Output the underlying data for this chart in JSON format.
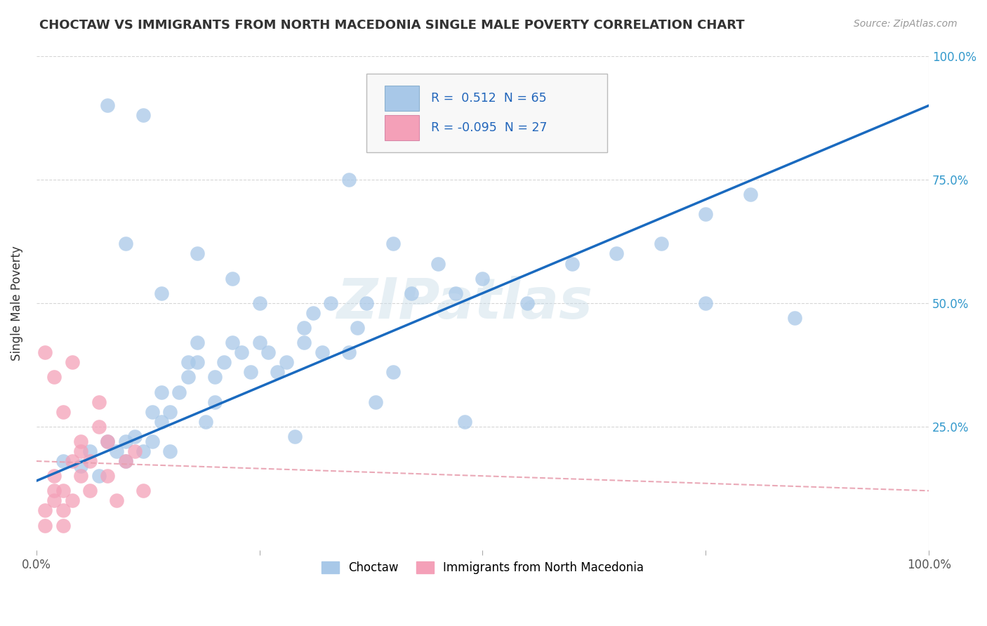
{
  "title": "CHOCTAW VS IMMIGRANTS FROM NORTH MACEDONIA SINGLE MALE POVERTY CORRELATION CHART",
  "source": "Source: ZipAtlas.com",
  "ylabel": "Single Male Poverty",
  "watermark": "ZIPatlas",
  "r_choctaw": 0.512,
  "n_choctaw": 65,
  "r_macedonia": -0.095,
  "n_macedonia": 27,
  "xlim": [
    0,
    100
  ],
  "ylim": [
    0,
    100
  ],
  "xtick_labels": [
    "0.0%",
    "",
    "",
    "",
    "100.0%"
  ],
  "xtick_vals": [
    0,
    25,
    50,
    75,
    100
  ],
  "ytick_labels": [
    "25.0%",
    "50.0%",
    "75.0%",
    "100.0%"
  ],
  "ytick_vals": [
    25,
    50,
    75,
    100
  ],
  "color_choctaw": "#a8c8e8",
  "color_macedonia": "#f4a0b8",
  "color_trend_choctaw": "#1a6abf",
  "color_trend_macedonia": "#e8a0b0",
  "background_color": "#ffffff",
  "choctaw_x": [
    3,
    5,
    6,
    7,
    8,
    9,
    10,
    10,
    11,
    12,
    13,
    13,
    14,
    14,
    15,
    15,
    16,
    17,
    17,
    18,
    18,
    19,
    20,
    20,
    21,
    22,
    23,
    24,
    25,
    26,
    27,
    28,
    29,
    30,
    31,
    32,
    33,
    35,
    36,
    37,
    38,
    40,
    42,
    45,
    47,
    50,
    55,
    60,
    65,
    70,
    75,
    80,
    30,
    22,
    25,
    18,
    14,
    12,
    10,
    8,
    35,
    40,
    48,
    75,
    85
  ],
  "choctaw_y": [
    18,
    17,
    20,
    15,
    22,
    20,
    22,
    18,
    23,
    20,
    28,
    22,
    26,
    32,
    20,
    28,
    32,
    38,
    35,
    42,
    38,
    26,
    30,
    35,
    38,
    42,
    40,
    36,
    42,
    40,
    36,
    38,
    23,
    45,
    48,
    40,
    50,
    40,
    45,
    50,
    30,
    36,
    52,
    58,
    52,
    55,
    50,
    58,
    60,
    62,
    68,
    72,
    42,
    55,
    50,
    60,
    52,
    88,
    62,
    90,
    75,
    62,
    26,
    50,
    47
  ],
  "choctaw_trend_x0": 0,
  "choctaw_trend_y0": 14,
  "choctaw_trend_x1": 100,
  "choctaw_trend_y1": 90,
  "macedonia_trend_x0": 0,
  "macedonia_trend_y0": 18,
  "macedonia_trend_x1": 100,
  "macedonia_trend_y1": 12,
  "macedonia_x": [
    1,
    1,
    2,
    2,
    2,
    3,
    3,
    3,
    4,
    4,
    5,
    5,
    5,
    6,
    6,
    7,
    7,
    8,
    8,
    9,
    10,
    11,
    12,
    2,
    1,
    3,
    4
  ],
  "macedonia_y": [
    5,
    8,
    10,
    12,
    15,
    5,
    8,
    12,
    10,
    18,
    15,
    20,
    22,
    12,
    18,
    25,
    30,
    15,
    22,
    10,
    18,
    20,
    12,
    35,
    40,
    28,
    38
  ]
}
